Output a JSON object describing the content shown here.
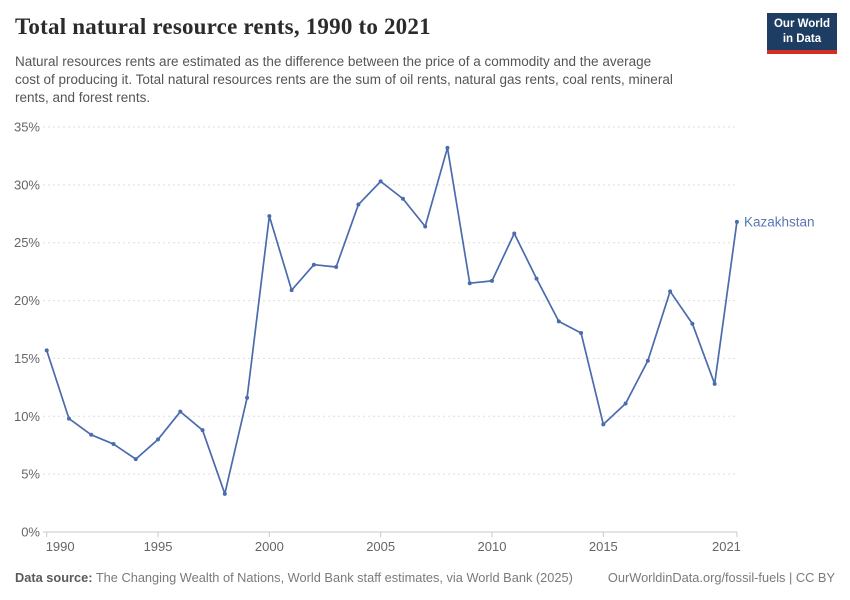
{
  "header": {
    "title": "Total natural resource rents, 1990 to 2021",
    "subtitle_lines": [
      "Natural resources rents are estimated as the difference between the price of a commodity and the average",
      "cost of producing it. Total natural resources rents are the sum of oil rents, natural gas rents, coal rents, mineral",
      "rents, and forest rents."
    ],
    "logo": {
      "line1": "Our World",
      "line2": "in Data",
      "bg_color": "#1d3d63",
      "bar_color": "#cf3225"
    }
  },
  "chart_data": {
    "type": "line",
    "title": "Total natural resource rents, 1990 to 2021",
    "entity_label": "Kazakhstan",
    "x": [
      1990,
      1991,
      1992,
      1993,
      1994,
      1995,
      1996,
      1997,
      1998,
      1999,
      2000,
      2001,
      2002,
      2003,
      2004,
      2005,
      2006,
      2007,
      2008,
      2009,
      2010,
      2011,
      2012,
      2013,
      2014,
      2015,
      2016,
      2017,
      2018,
      2019,
      2020,
      2021
    ],
    "series": [
      {
        "name": "Kazakhstan",
        "values": [
          15.7,
          9.8,
          8.4,
          7.6,
          6.3,
          8.0,
          10.4,
          8.8,
          3.3,
          11.6,
          27.3,
          20.9,
          23.1,
          22.9,
          28.3,
          30.3,
          28.8,
          26.4,
          33.2,
          21.5,
          21.7,
          25.8,
          21.9,
          18.2,
          17.2,
          9.3,
          11.1,
          14.8,
          20.8,
          18.0,
          12.8,
          26.8
        ]
      }
    ],
    "xlabel": "",
    "ylabel": "",
    "ylim": [
      0,
      35
    ],
    "yticks": [
      0,
      5,
      10,
      15,
      20,
      25,
      30,
      35
    ],
    "ytick_suffix": "%",
    "xticks": [
      1990,
      1995,
      2000,
      2005,
      2010,
      2015,
      2021
    ],
    "grid": "horizontal-dashed",
    "legend_position": "end-of-line",
    "line_color": "#4a6bad",
    "label_color": "#5878b3",
    "grid_color": "#dedede",
    "axis_color": "#c9c9c9"
  },
  "footer": {
    "source_label": "Data source:",
    "source_text": " The Changing Wealth of Nations, World Bank staff estimates, via World Bank (2025)",
    "link_text": "OurWorldinData.org/fossil-fuels | CC BY"
  }
}
